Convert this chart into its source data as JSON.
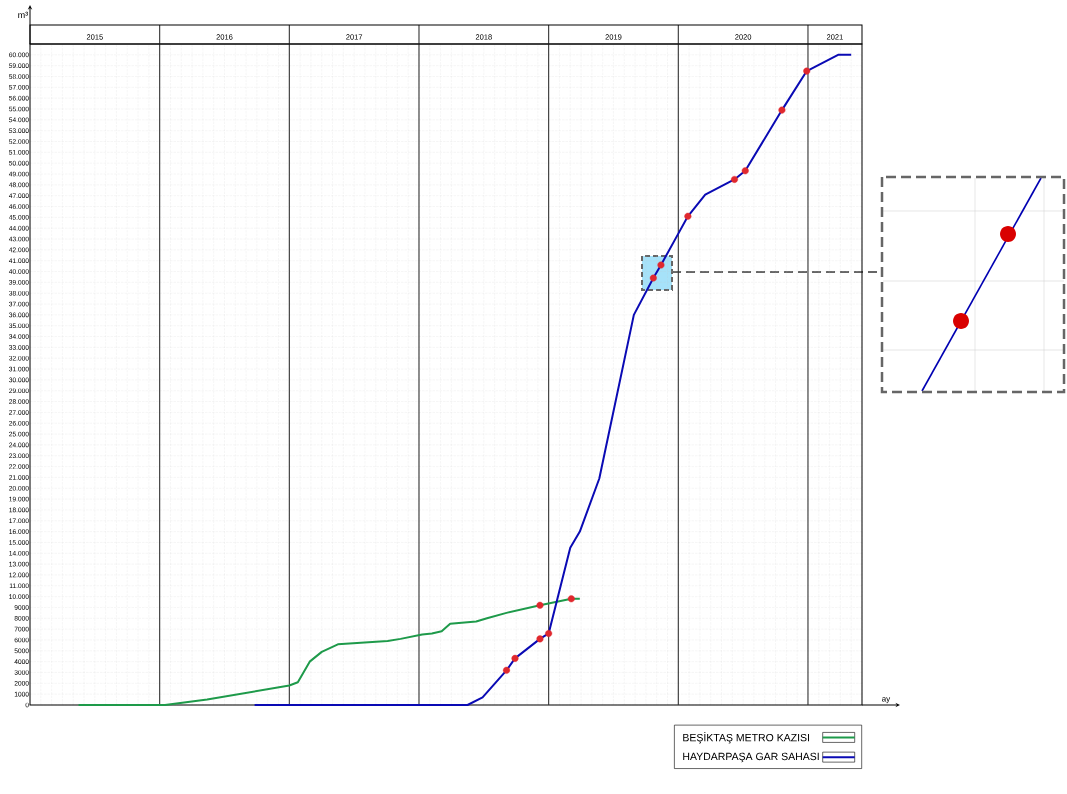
{
  "chart_data": {
    "type": "line",
    "xlabel": "ay",
    "ylabel": "m³",
    "xlim": [
      "2015-01-01",
      "2021-06-01"
    ],
    "ylim": [
      0,
      61000
    ],
    "xticks": [
      {
        "value": "2015-07-01",
        "label": "2015"
      },
      {
        "value": "2016-07-01",
        "label": "2016"
      },
      {
        "value": "2017-07-01",
        "label": "2017"
      },
      {
        "value": "2018-07-01",
        "label": "2018"
      },
      {
        "value": "2019-07-01",
        "label": "2019"
      },
      {
        "value": "2020-07-01",
        "label": "2020"
      },
      {
        "value": "2021-03-16",
        "label": "2021"
      }
    ],
    "yticks": [
      0,
      1000,
      2000,
      3000,
      4000,
      5000,
      6000,
      7000,
      8000,
      9000,
      {
        "value": 10000,
        "label": "10.000"
      },
      {
        "value": 11000,
        "label": "11.000"
      },
      {
        "value": 12000,
        "label": "12.000"
      },
      {
        "value": 13000,
        "label": "13.000"
      },
      {
        "value": 14000,
        "label": "14.000"
      },
      {
        "value": 15000,
        "label": "15.000"
      },
      {
        "value": 16000,
        "label": "16.000"
      },
      {
        "value": 17000,
        "label": "17.000"
      },
      {
        "value": 18000,
        "label": "18.000"
      },
      {
        "value": 19000,
        "label": "19.000"
      },
      {
        "value": 20000,
        "label": "20.000"
      },
      {
        "value": 21000,
        "label": "21.000"
      },
      {
        "value": 22000,
        "label": "22.000"
      },
      {
        "value": 23000,
        "label": "23.000"
      },
      {
        "value": 24000,
        "label": "24.000"
      },
      {
        "value": 25000,
        "label": "25.000"
      },
      {
        "value": 26000,
        "label": "26.000"
      },
      {
        "value": 27000,
        "label": "27.000"
      },
      {
        "value": 28000,
        "label": "28.000"
      },
      {
        "value": 29000,
        "label": "29.000"
      },
      {
        "value": 30000,
        "label": "30.000"
      },
      {
        "value": 31000,
        "label": "31.000"
      },
      {
        "value": 32000,
        "label": "32.000"
      },
      {
        "value": 33000,
        "label": "33.000"
      },
      {
        "value": 34000,
        "label": "34.000"
      },
      {
        "value": 35000,
        "label": "35.000"
      },
      {
        "value": 36000,
        "label": "36.000"
      },
      {
        "value": 37000,
        "label": "37.000"
      },
      {
        "value": 38000,
        "label": "38.000"
      },
      {
        "value": 39000,
        "label": "39.000"
      },
      {
        "value": 40000,
        "label": "40.000"
      },
      {
        "value": 41000,
        "label": "41.000"
      },
      {
        "value": 42000,
        "label": "42.000"
      },
      {
        "value": 43000,
        "label": "43.000"
      },
      {
        "value": 44000,
        "label": "44.000"
      },
      {
        "value": 45000,
        "label": "45.000"
      },
      {
        "value": 46000,
        "label": "46.000"
      },
      {
        "value": 47000,
        "label": "47.000"
      },
      {
        "value": 48000,
        "label": "48.000"
      },
      {
        "value": 49000,
        "label": "49.000"
      },
      {
        "value": 50000,
        "label": "50.000"
      },
      {
        "value": 51000,
        "label": "51.000"
      },
      {
        "value": 52000,
        "label": "52.000"
      },
      {
        "value": 53000,
        "label": "53.000"
      },
      {
        "value": 54000,
        "label": "54.000"
      },
      {
        "value": 55000,
        "label": "55.000"
      },
      {
        "value": 56000,
        "label": "56.000"
      },
      {
        "value": 57000,
        "label": "57.000"
      },
      {
        "value": 58000,
        "label": "58.000"
      },
      {
        "value": 59000,
        "label": "59.000"
      },
      {
        "value": 60000,
        "label": "60.000"
      }
    ],
    "ref_lines": [
      {
        "axis": "x",
        "value": "2016-01-01",
        "color": "#333333"
      },
      {
        "axis": "x",
        "value": "2017-01-01",
        "color": "#333333"
      },
      {
        "axis": "x",
        "value": "2018-01-01",
        "color": "#333333"
      },
      {
        "axis": "x",
        "value": "2019-01-01",
        "color": "#333333"
      },
      {
        "axis": "x",
        "value": "2020-01-01",
        "color": "#333333"
      },
      {
        "axis": "x",
        "value": "2021-01-01",
        "color": "#333333"
      }
    ],
    "grid": true,
    "legend": "bottom right",
    "line_style": "solid",
    "series": [
      {
        "name": "BEŞİKTAŞ METRO KAZISI",
        "color": "#1e9a4a",
        "marker": "none",
        "x": [
          "2015-05-16",
          "2016-01-16",
          "2016-05-13",
          "2017-01-01",
          "2017-01-25",
          "2017-02-28",
          "2017-04-01",
          "2017-05-16",
          "2017-10-04",
          "2017-11-10",
          "2018-01-10",
          "2018-02-07",
          "2018-03-04",
          "2018-03-28",
          "2018-06-10",
          "2018-07-10",
          "2018-09-04",
          "2018-12-07",
          "2019-03-04",
          "2019-03-28"
        ],
        "values": [
          0,
          0,
          500,
          1800,
          2100,
          4000,
          4900,
          5600,
          5900,
          6100,
          6500,
          6600,
          6800,
          7500,
          7700,
          8000,
          8500,
          9200,
          9800,
          9800
        ]
      },
      {
        "name": "HAYDARPAŞA GAR SAHASI",
        "color": "#0a0ab4",
        "marker": "none",
        "x": [
          "2016-09-25",
          "2018-05-16",
          "2018-06-28",
          "2018-09-04",
          "2018-09-28",
          "2018-12-07",
          "2019-01-01",
          "2019-03-01",
          "2019-03-28",
          "2019-05-22",
          "2019-08-28",
          "2019-10-22",
          "2019-11-13",
          "2020-01-01",
          "2020-01-28",
          "2020-03-16",
          "2020-06-07",
          "2020-07-07",
          "2020-10-19",
          "2020-12-28",
          "2021-03-25",
          "2021-05-01"
        ],
        "values": [
          0,
          0,
          700,
          3200,
          4300,
          6100,
          6600,
          14500,
          16000,
          20900,
          36000,
          39400,
          40600,
          43500,
          45100,
          47100,
          48500,
          49300,
          54900,
          58500,
          60000,
          60000
        ]
      },
      {
        "type": "scatter",
        "color": "#e0282e",
        "marker": "circle",
        "x": [
          "2018-09-04",
          "2018-09-28",
          "2018-12-07",
          "2019-01-01",
          "2018-12-07",
          "2019-03-04",
          "2019-10-22",
          "2019-11-13",
          "2020-01-28",
          "2020-06-07",
          "2020-07-07",
          "2020-10-19",
          "2020-12-28"
        ],
        "values": [
          3200,
          4300,
          6100,
          6600,
          9200,
          9800,
          39400,
          40600,
          45100,
          48500,
          49300,
          54900,
          58500
        ]
      }
    ]
  }
}
